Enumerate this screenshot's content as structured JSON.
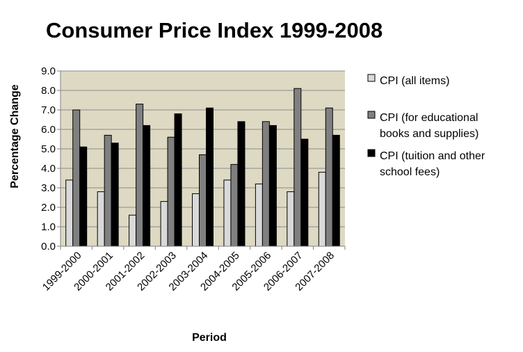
{
  "chart_data": {
    "type": "bar",
    "title": "Consumer Price Index 1999-2008",
    "xlabel": "Period",
    "ylabel": "Percentage Change",
    "categories": [
      "1999-2000",
      "2000-2001",
      "2001-2002",
      "2002-2003",
      "2003-2004",
      "2004-2005",
      "2005-2006",
      "2006-2007",
      "2007-2008"
    ],
    "ylim": [
      0,
      9
    ],
    "yticks": [
      "0.0",
      "1.0",
      "2.0",
      "3.0",
      "4.0",
      "5.0",
      "6.0",
      "7.0",
      "8.0",
      "9.0"
    ],
    "grid": true,
    "legend_position": "right",
    "plot_background": "#ddd9c3",
    "series": [
      {
        "name": "CPI (all items)",
        "legend_lines": [
          "CPI (all items)"
        ],
        "color": "#d9d9d9",
        "values": [
          3.4,
          2.8,
          1.6,
          2.3,
          2.7,
          3.4,
          3.2,
          2.8,
          3.8
        ]
      },
      {
        "name": "CPI (for educational books and supplies)",
        "legend_lines": [
          "CPI (for educational",
          "books and supplies)"
        ],
        "color": "#808080",
        "values": [
          7.0,
          5.7,
          7.3,
          5.6,
          4.7,
          4.2,
          6.4,
          8.1,
          7.1
        ]
      },
      {
        "name": "CPI (tuition and other school fees)",
        "legend_lines": [
          "CPI (tuition and other",
          "school fees)"
        ],
        "color": "#000000",
        "values": [
          5.1,
          5.3,
          6.2,
          6.8,
          7.1,
          6.4,
          6.2,
          5.5,
          5.7
        ]
      }
    ]
  }
}
